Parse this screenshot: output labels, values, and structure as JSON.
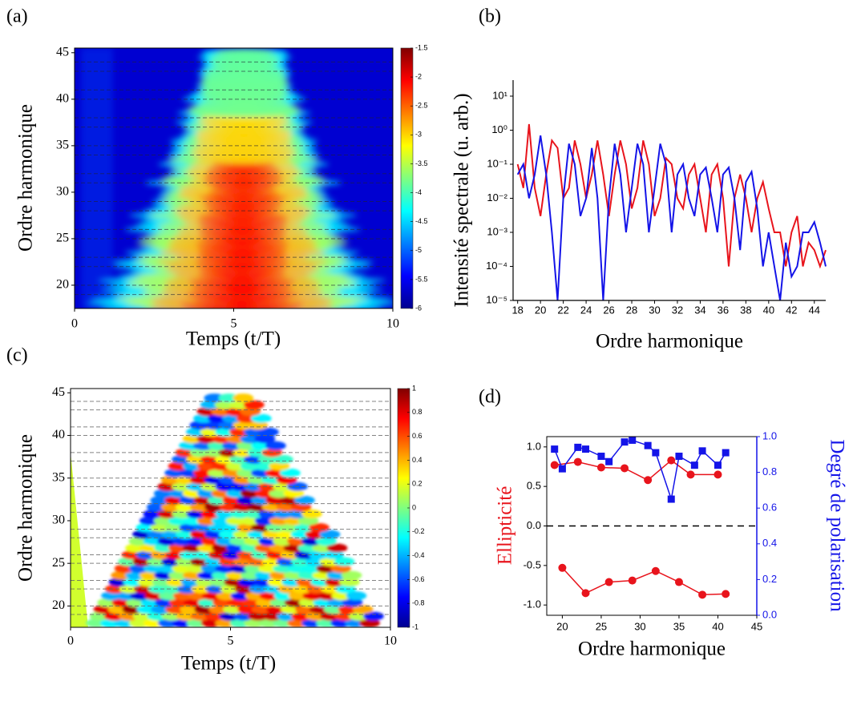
{
  "chart_data": [
    {
      "type": "heatmap",
      "panel": "(a)",
      "x_label": "Temps (t/T)",
      "y_label": "Ordre harmonique",
      "xlim": [
        0,
        10
      ],
      "xticks": [
        0,
        5,
        10
      ],
      "ylim": [
        17.5,
        45.5
      ],
      "yticks": [
        20,
        25,
        30,
        35,
        40,
        45
      ],
      "hlines": [
        19,
        20,
        22,
        23,
        25,
        26,
        28,
        29,
        31,
        32,
        34,
        35,
        37,
        38,
        40,
        41,
        43,
        44
      ],
      "colorbar": {
        "lim": [
          -6,
          -1.5
        ],
        "ticks": [
          -1.5,
          -2,
          -2.5,
          -3,
          -3.5,
          -4,
          -4.5,
          -5,
          -5.5,
          -6
        ]
      }
    },
    {
      "type": "line",
      "panel": "(b)",
      "x_label": "Ordre harmonique",
      "y_label": "Intensité spectrale (u. arb.)",
      "log_y": true,
      "xlim": [
        17.6,
        45
      ],
      "xticks": [
        18,
        20,
        22,
        24,
        26,
        28,
        30,
        32,
        34,
        36,
        38,
        40,
        42,
        44
      ],
      "ylim": [
        1e-05,
        10
      ],
      "yticks": [
        {
          "value": 10,
          "label": "10¹"
        },
        {
          "value": 1,
          "label": "10⁰"
        },
        {
          "value": 0.1,
          "label": "10⁻¹"
        },
        {
          "value": 0.01,
          "label": "10⁻²"
        },
        {
          "value": 0.001,
          "label": "10⁻³"
        },
        {
          "value": 0.0001,
          "label": "10⁻⁴"
        },
        {
          "value": 1e-05,
          "label": "10⁻⁵"
        }
      ],
      "x": [
        18,
        18.5,
        19,
        19.5,
        20,
        20.5,
        21,
        21.5,
        22,
        22.5,
        23,
        23.5,
        24,
        24.5,
        25,
        25.5,
        26,
        26.5,
        27,
        27.5,
        28,
        28.5,
        29,
        29.5,
        30,
        30.5,
        31,
        31.5,
        32,
        32.5,
        33,
        33.5,
        34,
        34.5,
        35,
        35.5,
        36,
        36.5,
        37,
        37.5,
        38,
        38.5,
        39,
        39.5,
        40,
        40.5,
        41,
        41.5,
        42,
        42.5,
        43,
        43.5,
        44,
        44.5,
        45
      ],
      "series": [
        {
          "color": "#e8141c",
          "values": [
            0.1,
            0.02,
            1.5,
            0.02,
            0.003,
            0.05,
            0.5,
            0.3,
            0.01,
            0.02,
            0.5,
            0.1,
            0.01,
            0.05,
            0.5,
            0.05,
            0.003,
            0.05,
            0.5,
            0.1,
            0.005,
            0.02,
            0.5,
            0.1,
            0.003,
            0.01,
            0.15,
            0.1,
            0.01,
            0.005,
            0.05,
            0.1,
            0.01,
            0.001,
            0.05,
            0.1,
            0.01,
            0.0001,
            0.01,
            0.05,
            0.01,
            0.001,
            0.01,
            0.03,
            0.005,
            0.001,
            0.001,
            0.0001,
            0.001,
            0.003,
            0.0001,
            0.0005,
            0.0003,
            0.0001,
            0.0003
          ]
        },
        {
          "color": "#1414e8",
          "values": [
            0.05,
            0.1,
            0.01,
            0.05,
            0.7,
            0.05,
            0.001,
            1e-05,
            0.01,
            0.4,
            0.1,
            0.003,
            0.01,
            0.3,
            0.01,
            1e-05,
            0.01,
            0.4,
            0.05,
            0.001,
            0.02,
            0.4,
            0.1,
            0.001,
            0.02,
            0.4,
            0.1,
            0.001,
            0.05,
            0.1,
            0.01,
            0.003,
            0.05,
            0.08,
            0.01,
            0.001,
            0.05,
            0.08,
            0.01,
            0.0003,
            0.03,
            0.06,
            0.005,
            0.0001,
            0.001,
            0.0001,
            1e-05,
            0.0005,
            5e-05,
            0.0001,
            0.001,
            0.001,
            0.002,
            0.0005,
            0.0001
          ]
        }
      ]
    },
    {
      "type": "heatmap",
      "panel": "(c)",
      "x_label": "Temps (t/T)",
      "y_label": "Ordre harmonique",
      "xlim": [
        0,
        10
      ],
      "xticks": [
        0,
        5,
        10
      ],
      "ylim": [
        17.5,
        45.5
      ],
      "yticks": [
        20,
        25,
        30,
        35,
        40,
        45
      ],
      "hlines": [
        19,
        20,
        22,
        23,
        25,
        26,
        28,
        29,
        31,
        32,
        34,
        35,
        37,
        38,
        40,
        41,
        43,
        44
      ],
      "colorbar": {
        "lim": [
          -1,
          1
        ],
        "ticks": [
          1,
          0.8,
          0.6,
          0.4,
          0.2,
          0,
          -0.2,
          -0.4,
          -0.6,
          -0.8,
          -1
        ]
      }
    },
    {
      "type": "line",
      "panel": "(d)",
      "x_label": "Ordre harmonique",
      "y_label": "Ellipticité",
      "y2_label": "Degré de polarisation",
      "xlim": [
        18,
        45
      ],
      "xticks": [
        20,
        25,
        30,
        35,
        40,
        45
      ],
      "ylim": [
        -1.13,
        1.13
      ],
      "yticks": [
        {
          "value": -1,
          "label": "-1.0"
        },
        -0.5,
        {
          "value": 0,
          "label": "0.0"
        },
        0.5,
        {
          "value": 1,
          "label": "1.0"
        }
      ],
      "y2lim": [
        0,
        1
      ],
      "y2ticks": [
        {
          "value": 0,
          "label": "0.0"
        },
        0.2,
        0.4,
        0.6,
        0.8,
        {
          "value": 1,
          "label": "1.0"
        }
      ],
      "hlines": [
        0
      ],
      "series": [
        {
          "color": "#e8141c",
          "marker": "circle",
          "x": [
            19,
            22,
            25,
            28,
            31,
            34,
            36.5,
            40
          ],
          "values": [
            0.77,
            0.81,
            0.74,
            0.73,
            0.58,
            0.83,
            0.65,
            0.65
          ]
        },
        {
          "color": "#e8141c",
          "marker": "circle",
          "x": [
            20,
            23,
            26,
            29,
            32,
            35,
            38,
            41
          ],
          "values": [
            -0.53,
            -0.85,
            -0.71,
            -0.69,
            -0.57,
            -0.71,
            -0.87,
            -0.86
          ]
        },
        {
          "color": "#1414e8",
          "marker": "square",
          "axis": "y2",
          "x": [
            19,
            20,
            22,
            23,
            25,
            26,
            28,
            29,
            31,
            32,
            34,
            35,
            37,
            38,
            40,
            41
          ],
          "values": [
            0.93,
            0.82,
            0.94,
            0.93,
            0.89,
            0.86,
            0.97,
            0.98,
            0.95,
            0.91,
            0.65,
            0.89,
            0.84,
            0.92,
            0.84,
            0.91
          ]
        }
      ]
    }
  ]
}
